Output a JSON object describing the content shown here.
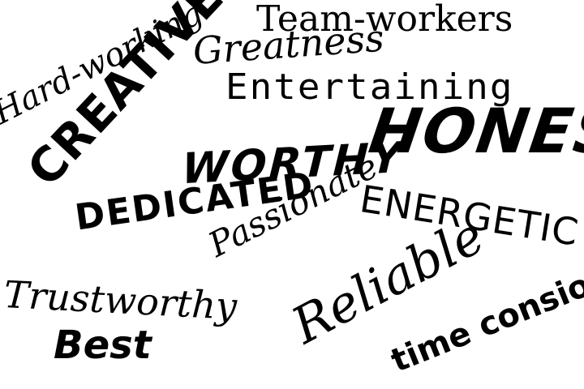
{
  "words": {
    "team_workers": "Team-workers",
    "greatness": "Greatness",
    "entertaining": "Entertaining",
    "hard_working": "Hard-working",
    "honest": "HONEST",
    "creative": "CREATIVE",
    "worthy": "WORTHY",
    "energetic": "ENERGETIC",
    "dedicated": "DEDICATED",
    "passionate": "Passionate",
    "reliable": "Reliable",
    "time_consious": "time consious",
    "trustworthy": "Trustworthy",
    "best": "Best"
  },
  "colors": {
    "background": "#ffffff",
    "text": "#000000"
  }
}
